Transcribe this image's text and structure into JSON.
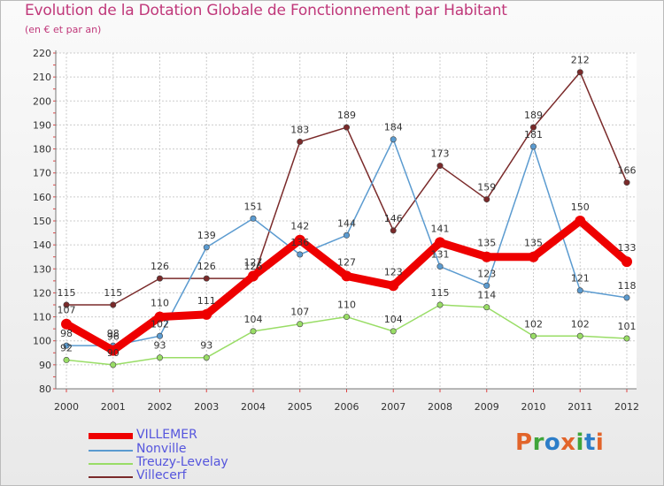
{
  "title": "Evolution de la Dotation Globale de Fonctionnement par Habitant",
  "subtitle": "(en € et par an)",
  "logo": {
    "text": "Proxiti",
    "colors": [
      "#e2642a",
      "#3fa53a",
      "#2c7dc8",
      "#e2642a",
      "#3fa53a",
      "#2c7dc8",
      "#e2642a"
    ]
  },
  "chart_data": {
    "type": "line",
    "categories": [
      "2000",
      "2001",
      "2002",
      "2003",
      "2004",
      "2005",
      "2006",
      "2007",
      "2008",
      "2009",
      "2010",
      "2011",
      "2012"
    ],
    "ylim": [
      80,
      220
    ],
    "yticks": [
      80,
      90,
      100,
      110,
      120,
      130,
      140,
      150,
      160,
      170,
      180,
      190,
      200,
      210,
      220
    ],
    "grid": true,
    "legend_position": "bottom-left",
    "series": [
      {
        "name": "VILLEMER",
        "color": "#ee0000",
        "values": [
          107,
          96,
          110,
          111,
          127,
          142,
          127,
          123,
          141,
          135,
          135,
          150,
          133
        ]
      },
      {
        "name": "Nonville",
        "color": "#5b9bd0",
        "values": [
          98,
          98,
          102,
          139,
          151,
          136,
          144,
          184,
          131,
          123,
          181,
          121,
          118
        ]
      },
      {
        "name": "Treuzy-Levelay",
        "color": "#99dd66",
        "values": [
          92,
          90,
          93,
          93,
          104,
          107,
          110,
          104,
          115,
          114,
          102,
          102,
          101
        ]
      },
      {
        "name": "Villecerf",
        "color": "#7a2a2a",
        "values": [
          115,
          115,
          126,
          126,
          126,
          183,
          189,
          146,
          173,
          159,
          189,
          212,
          166
        ]
      }
    ]
  }
}
